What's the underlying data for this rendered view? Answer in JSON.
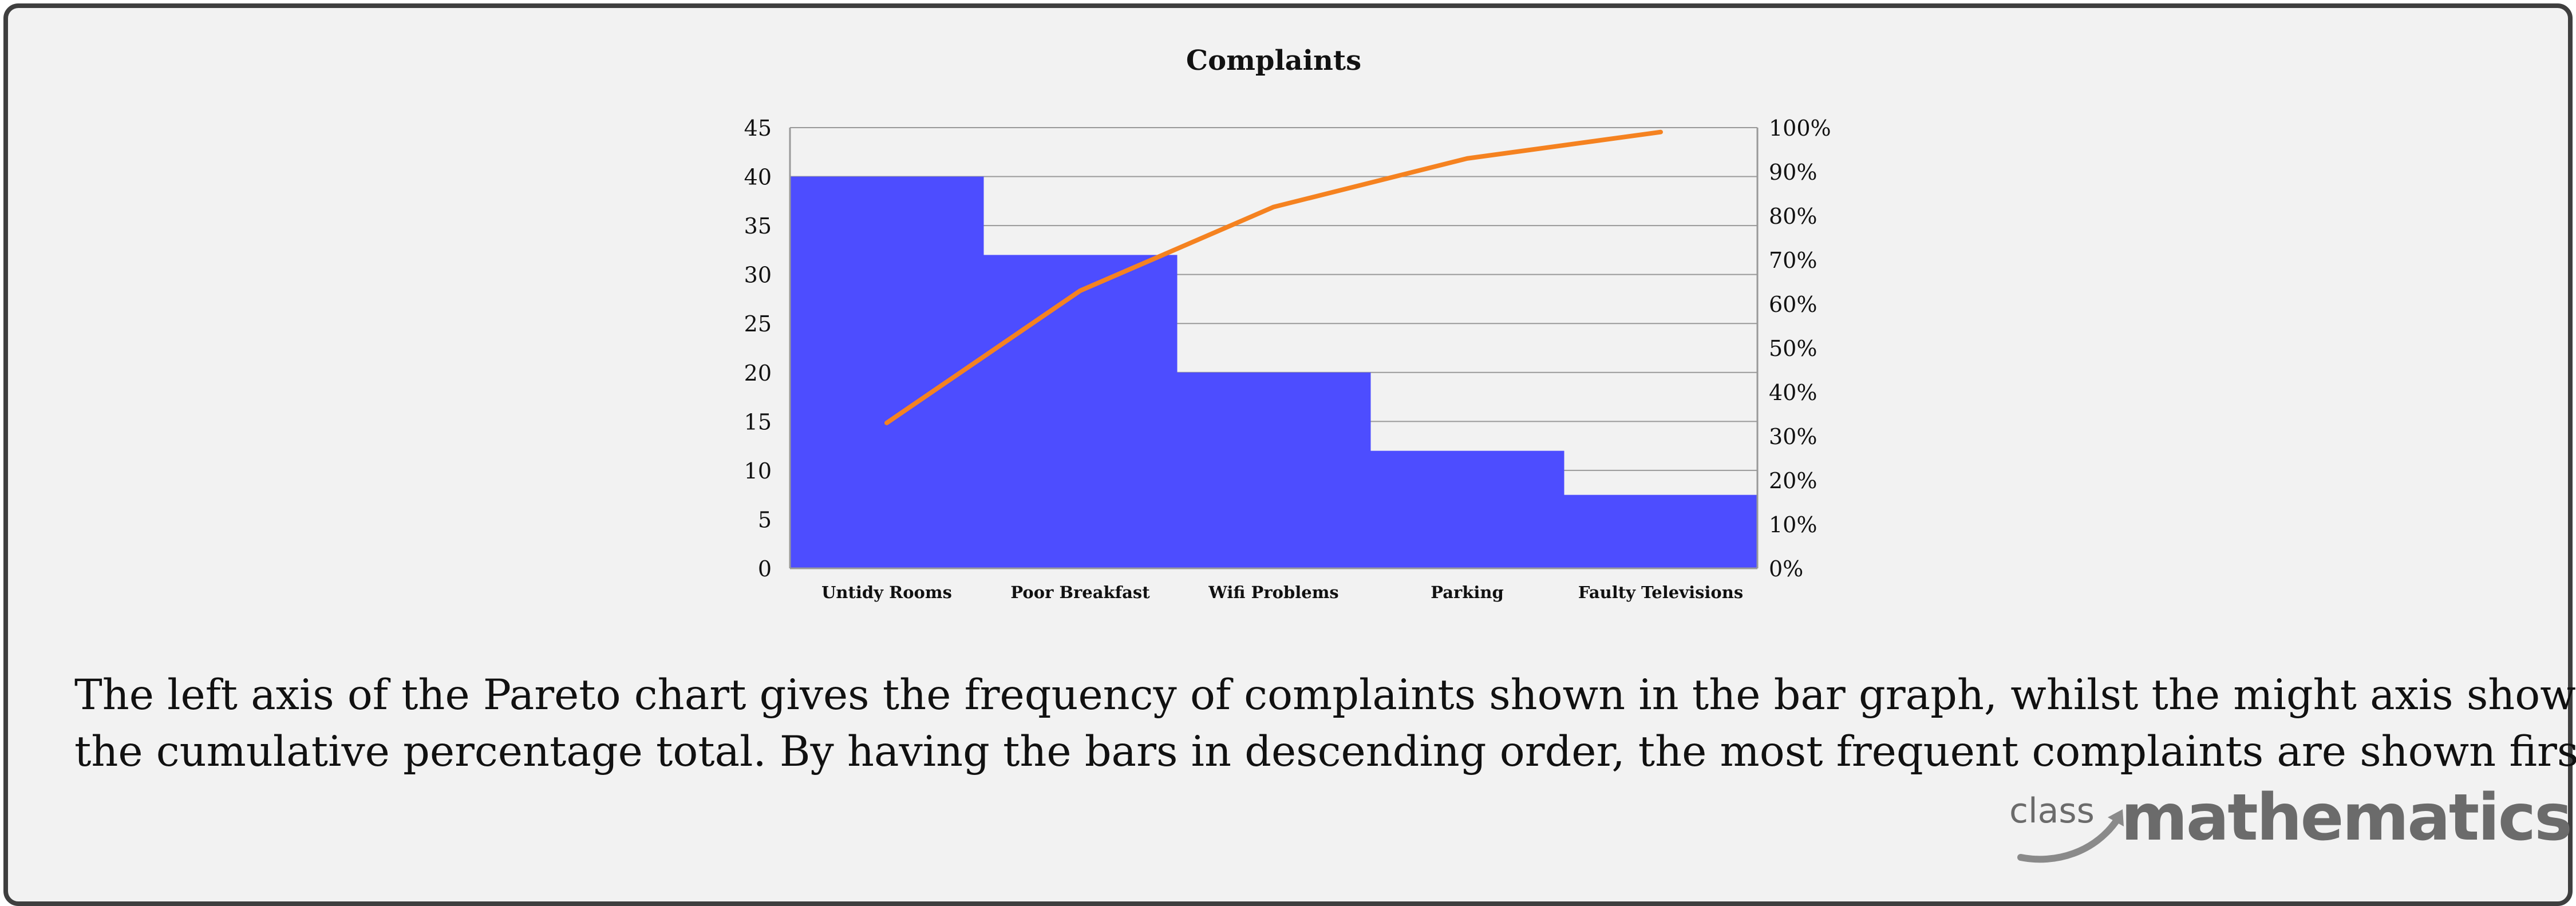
{
  "chart_data": {
    "type": "bar",
    "title": "Complaints",
    "categories": [
      "Untidy Rooms",
      "Poor Breakfast",
      "Wifi Problems",
      "Parking",
      "Faulty Televisions"
    ],
    "series": [
      {
        "kind": "bar",
        "axis": "left",
        "values": [
          40,
          32,
          20,
          12,
          7.5
        ]
      },
      {
        "kind": "line",
        "axis": "right",
        "values": [
          33,
          63,
          82,
          93,
          99
        ]
      }
    ],
    "y_left": {
      "ticks": [
        "0",
        "5",
        "10",
        "15",
        "20",
        "25",
        "30",
        "35",
        "40",
        "45"
      ],
      "ylim": [
        0,
        45
      ]
    },
    "y_right": {
      "ticks": [
        "0%",
        "10%",
        "20%",
        "30%",
        "40%",
        "50%",
        "60%",
        "70%",
        "80%",
        "90%",
        "100%"
      ],
      "ylim": [
        0,
        100
      ]
    },
    "grid": true,
    "colors": {
      "bar": "#4d4dff",
      "line": "#f58220",
      "grid": "#999999"
    }
  },
  "description": {
    "line1": "The left axis of the Pareto chart gives the frequency of complaints shown in the bar graph, whilst the might axis shows",
    "line2": "the cumulative percentage total. By having the bars in descending order, the most frequent complaints are shown first."
  },
  "logo": {
    "small": "class",
    "big": "mathematics"
  }
}
